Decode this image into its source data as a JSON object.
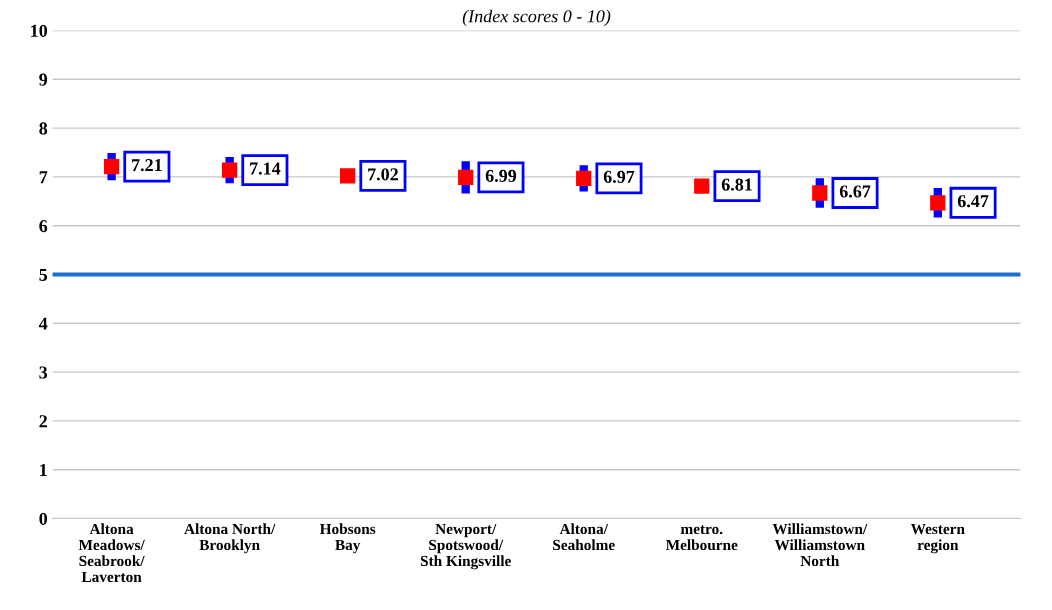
{
  "chart_data": {
    "type": "scatter",
    "title": "(Index scores 0 - 10)",
    "categories": [
      "Altona\nMeadows/\nSeabrook/\nLaverton",
      "Altona North/\nBrooklyn",
      "Hobsons\nBay",
      "Newport/\nSpotswood/\nSth Kingsville",
      "Altona/\nSeaholme",
      "metro.\nMelbourne",
      "Williamstown/\nWilliamstown\nNorth",
      "Western\nregion"
    ],
    "series": [
      {
        "color": "#ff0000",
        "values": [
          7.21,
          7.14,
          7.02,
          6.99,
          6.97,
          6.81,
          6.67,
          6.47
        ],
        "errors": [
          0.28,
          0.27,
          null,
          0.33,
          0.27,
          null,
          0.3,
          0.3
        ]
      }
    ],
    "marker": "square",
    "data_labels": true,
    "ylim": [
      0,
      10
    ],
    "yticks": [
      0,
      1,
      2,
      3,
      4,
      5,
      6,
      7,
      8,
      9,
      10
    ],
    "grid": "y",
    "legend": false,
    "ref_lines": [
      {
        "axis": "y",
        "value": 5,
        "color": "#1f6fd0",
        "line_style": "solid"
      }
    ]
  }
}
